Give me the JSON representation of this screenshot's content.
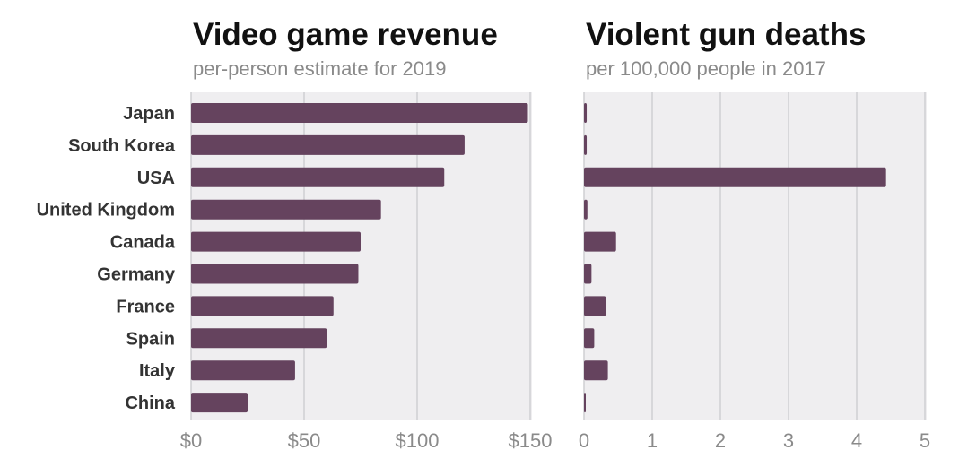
{
  "chart_data": [
    {
      "type": "bar",
      "title": "Video game revenue",
      "subtitle": "per-person estimate for 2019",
      "categories": [
        "Japan",
        "South Korea",
        "USA",
        "United Kingdom",
        "Canada",
        "Germany",
        "France",
        "Spain",
        "Italy",
        "China"
      ],
      "values": [
        149,
        121,
        112,
        84,
        75,
        74,
        63,
        60,
        46,
        25
      ],
      "xlim": [
        0,
        150
      ],
      "ticks": [
        0,
        50,
        100,
        150
      ],
      "tick_labels": [
        "$0",
        "$50",
        "$100",
        "$150"
      ],
      "grid": true,
      "color": "#65435e"
    },
    {
      "type": "bar",
      "title": "Violent gun deaths",
      "subtitle": "per 100,000 people in 2017",
      "categories": [
        "Japan",
        "South Korea",
        "USA",
        "United Kingdom",
        "Canada",
        "Germany",
        "France",
        "Spain",
        "Italy",
        "China"
      ],
      "values": [
        0.04,
        0.04,
        4.43,
        0.05,
        0.47,
        0.11,
        0.32,
        0.15,
        0.35,
        0.02
      ],
      "xlim": [
        0,
        5
      ],
      "ticks": [
        0,
        1,
        2,
        3,
        4,
        5
      ],
      "tick_labels": [
        "0",
        "1",
        "2",
        "3",
        "4",
        "5"
      ],
      "grid": true,
      "color": "#65435e"
    }
  ]
}
